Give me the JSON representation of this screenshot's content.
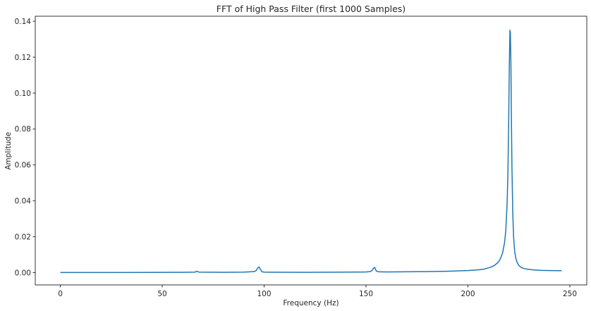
{
  "chart_data": {
    "type": "line",
    "title": "FFT of High Pass Filter (first 1000 Samples)",
    "xlabel": "Frequency (Hz)",
    "ylabel": "Amplitude",
    "xlim": [
      -12.3,
      258.3
    ],
    "ylim": [
      -0.0068,
      0.1428
    ],
    "xticks": [
      0,
      50,
      100,
      150,
      200,
      250
    ],
    "xtick_labels": [
      "0",
      "50",
      "100",
      "150",
      "200",
      "250"
    ],
    "yticks": [
      0.0,
      0.02,
      0.04,
      0.06,
      0.08,
      0.1,
      0.12,
      0.14
    ],
    "ytick_labels": [
      "0.00",
      "0.02",
      "0.04",
      "0.06",
      "0.08",
      "0.10",
      "0.12",
      "0.14"
    ],
    "grid": false,
    "series": [
      {
        "color": "#1f77b4",
        "x": [
          0,
          30,
          60,
          66,
          67,
          68,
          80,
          90,
          95,
          96,
          96.8,
          97.5,
          98.2,
          99,
          100,
          120,
          140,
          150,
          152,
          153,
          153.6,
          154.2,
          155,
          156,
          160,
          170,
          180,
          190,
          200,
          205,
          208,
          211,
          213,
          215,
          216,
          217,
          218,
          218.6,
          219.2,
          219.6,
          220,
          220.3,
          220.6,
          220.8,
          221.1,
          221.3,
          221.6,
          222,
          222.4,
          222.9,
          223.5,
          224.2,
          225,
          226,
          227.5,
          229,
          231,
          233,
          236,
          240,
          246
        ],
        "y": [
          0.0001,
          0.0001,
          0.0002,
          0.0003,
          0.0008,
          0.0003,
          0.0002,
          0.0003,
          0.0006,
          0.0011,
          0.0025,
          0.0032,
          0.0018,
          0.0005,
          0.0003,
          0.0002,
          0.0003,
          0.0004,
          0.0006,
          0.0012,
          0.0024,
          0.003,
          0.001,
          0.0005,
          0.0004,
          0.0005,
          0.0006,
          0.0008,
          0.0012,
          0.0016,
          0.002,
          0.003,
          0.004,
          0.006,
          0.008,
          0.011,
          0.017,
          0.024,
          0.038,
          0.055,
          0.085,
          0.115,
          0.135,
          0.134,
          0.115,
          0.088,
          0.058,
          0.033,
          0.02,
          0.012,
          0.008,
          0.0055,
          0.004,
          0.003,
          0.0023,
          0.002,
          0.0017,
          0.0015,
          0.0013,
          0.0012,
          0.0011
        ]
      }
    ]
  }
}
